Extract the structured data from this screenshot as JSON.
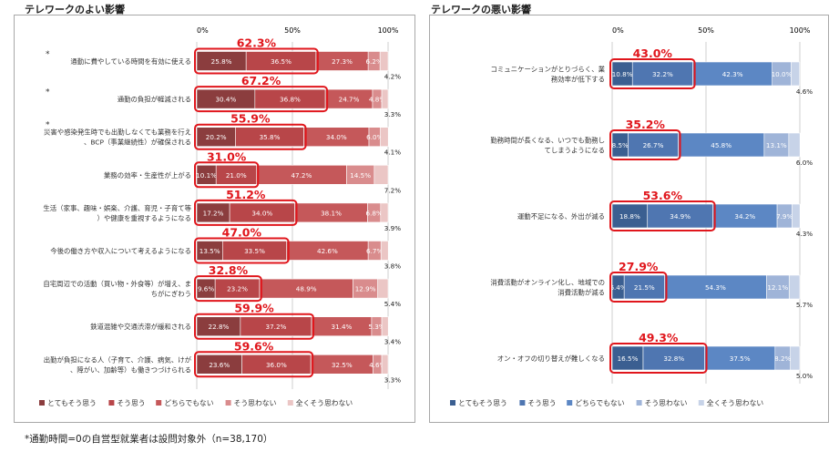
{
  "footnote": "*通勤時間=0の自営型就業者は設問対象外（n=38,170）",
  "chart_data": [
    {
      "type": "bar",
      "orientation": "horizontal-stacked-100",
      "title": "テレワークのよい影響",
      "axis_ticks": [
        "0%",
        "50%",
        "100%"
      ],
      "xlim": [
        0,
        100
      ],
      "series_names": [
        "とてもそう思う",
        "そう思う",
        "どちらでもない",
        "そう思わない",
        "全くそう思わない"
      ],
      "colors": [
        "#8b3d3e",
        "#b84649",
        "#c5585a",
        "#d98c8d",
        "#ebc6c5"
      ],
      "categories": [
        {
          "label": "通勤に費やしている時間を有効に使える",
          "marker": "*",
          "values": [
            25.8,
            36.5,
            27.3,
            6.2,
            4.2
          ],
          "highlight": "62.3%"
        },
        {
          "label": "通勤の負担が軽減される",
          "marker": "*",
          "values": [
            30.4,
            36.8,
            24.7,
            4.8,
            3.3
          ],
          "highlight": "67.2%"
        },
        {
          "label": "災害や感染発生時でも出勤しなくても業務を行え、BCP（事業継続性）が確保される",
          "marker": "*",
          "values": [
            20.2,
            35.8,
            34.0,
            6.0,
            4.1
          ],
          "highlight": "55.9%"
        },
        {
          "label": "業務の効率・生産性が上がる",
          "marker": "",
          "values": [
            10.1,
            21.0,
            47.2,
            14.5,
            7.2
          ],
          "highlight": "31.0%"
        },
        {
          "label": "生活（家事、趣味・娯楽、介護、育児・子育て等）や健康を重視するようになる",
          "marker": "",
          "values": [
            17.2,
            34.0,
            38.1,
            6.8,
            3.9
          ],
          "highlight": "51.2%"
        },
        {
          "label": "今後の働き方や収入について考えるようになる",
          "marker": "",
          "values": [
            13.5,
            33.5,
            42.6,
            6.7,
            3.8
          ],
          "highlight": "47.0%"
        },
        {
          "label": "自宅周辺での活動（買い物・外食等）が増え、まちがにぎわう",
          "marker": "",
          "values": [
            9.6,
            23.2,
            48.9,
            12.9,
            5.4
          ],
          "highlight": "32.8%"
        },
        {
          "label": "鉄道混雑や交通渋滞が緩和される",
          "marker": "",
          "values": [
            22.8,
            37.2,
            31.4,
            5.3,
            3.4
          ],
          "highlight": "59.9%"
        },
        {
          "label": "出勤が負担になる人（子育て、介護、病気、けが、障がい、加齢等）も働きつづけられる",
          "marker": "",
          "values": [
            23.6,
            36.0,
            32.5,
            4.6,
            3.3
          ],
          "highlight": "59.6%"
        }
      ]
    },
    {
      "type": "bar",
      "orientation": "horizontal-stacked-100",
      "title": "テレワークの悪い影響",
      "axis_ticks": [
        "0%",
        "50%",
        "100%"
      ],
      "xlim": [
        0,
        100
      ],
      "series_names": [
        "とてもそう思う",
        "そう思う",
        "どちらでもない",
        "そう思わない",
        "全くそう思わない"
      ],
      "colors": [
        "#3b5f91",
        "#4f76b1",
        "#5c87c4",
        "#9fb4d8",
        "#c7d3e8"
      ],
      "categories": [
        {
          "label": "コミュニケーションがとりづらく、業務効率が低下する",
          "marker": "",
          "values": [
            10.8,
            32.2,
            42.3,
            10.0,
            4.6
          ],
          "highlight": "43.0%"
        },
        {
          "label": "勤務時間が長くなる、いつでも勤務してしまうようになる",
          "marker": "",
          "values": [
            8.5,
            26.7,
            45.8,
            13.1,
            6.0
          ],
          "highlight": "35.2%"
        },
        {
          "label": "運動不足になる、外出が減る",
          "marker": "",
          "values": [
            18.8,
            34.9,
            34.2,
            7.9,
            4.3
          ],
          "highlight": "53.6%"
        },
        {
          "label": "消費活動がオンライン化し、地域での消費活動が減る",
          "marker": "",
          "values": [
            6.4,
            21.5,
            54.3,
            12.1,
            5.7
          ],
          "highlight": "27.9%"
        },
        {
          "label": "オン・オフの切り替えが難しくなる",
          "marker": "",
          "values": [
            16.5,
            32.8,
            37.5,
            8.2,
            5.0
          ],
          "highlight": "49.3%"
        }
      ]
    }
  ]
}
